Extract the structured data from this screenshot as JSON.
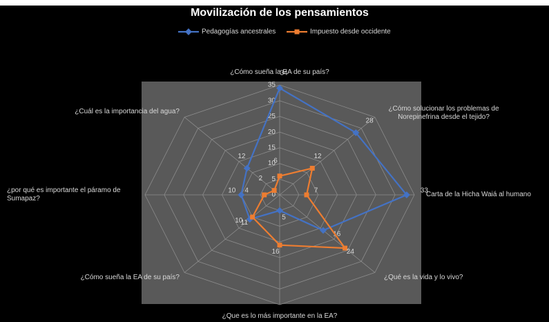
{
  "chart_data": {
    "type": "radar",
    "title": "Movilización de los pensamientos",
    "categories": [
      "¿Cómo sueña la EA de su país?",
      "¿Cómo solucionar los problemas de Norepinefrina desde el tejido?",
      "Carta de la Hicha Waiá al humano",
      "¿Qué es la vida y lo vivo?",
      "¿Que es lo más importante en  la EA?",
      "¿Cómo sueña la EA de su país?",
      "¿por qué es importante el páramo de Sumapaz?",
      "¿Cuál es la importancia del agua?"
    ],
    "series": [
      {
        "name": "Pedagogías ancestrales",
        "color": "#4472c4",
        "values": [
          34,
          28,
          33,
          16,
          5,
          11,
          10,
          12
        ]
      },
      {
        "name": "Impuesto desde occidente",
        "color": "#ed7d31",
        "values": [
          6,
          12,
          7,
          24,
          16,
          10,
          4,
          2
        ]
      }
    ],
    "ylim": [
      0,
      35
    ],
    "yticks": [
      0,
      5,
      10,
      15,
      20,
      25,
      30,
      35
    ],
    "grid": true,
    "legend": "top"
  }
}
